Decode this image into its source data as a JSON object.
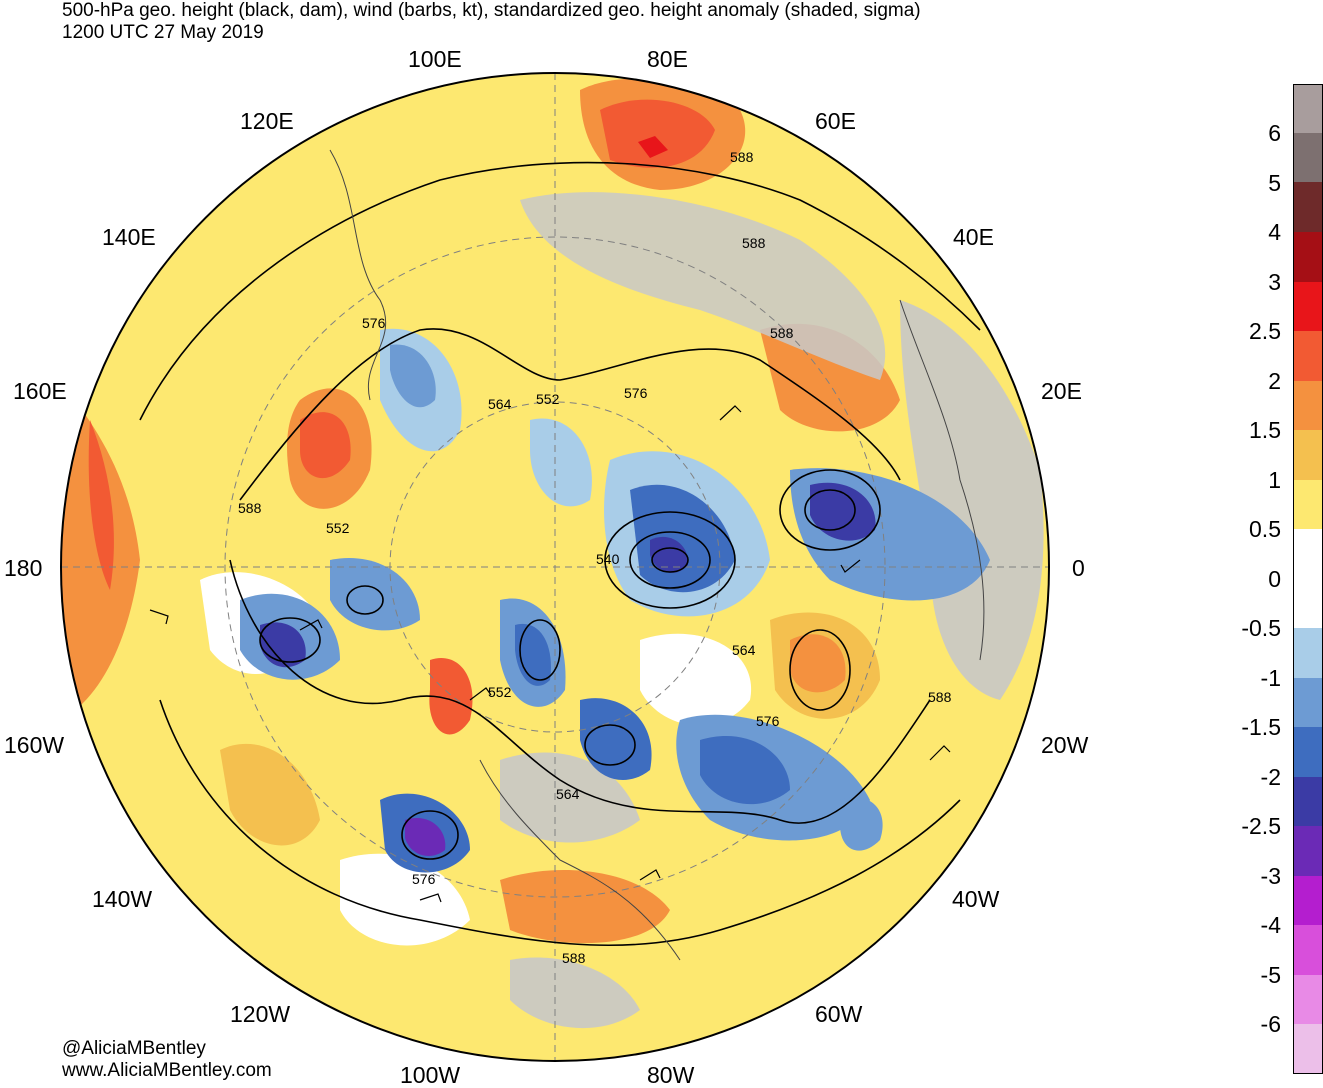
{
  "header": {
    "title": "500-hPa geo. height (black, dam), wind (barbs, kt), standardized geo. height anomaly (shaded, sigma)",
    "valid_time": "1200 UTC 27 May 2019"
  },
  "credit": {
    "handle": "@AliciaMBentley",
    "website": "www.AliciaMBentley.com"
  },
  "map": {
    "projection": "north-polar-stereographic",
    "longitude_labels": [
      "100E",
      "80E",
      "120E",
      "60E",
      "140E",
      "40E",
      "160E",
      "20E",
      "180",
      "0",
      "160W",
      "20W",
      "140W",
      "40W",
      "120W",
      "60W",
      "100W",
      "80W"
    ],
    "height_contour_labels": [
      "576",
      "564",
      "552",
      "576",
      "588",
      "588",
      "588",
      "588",
      "552",
      "540",
      "564",
      "552",
      "576",
      "588",
      "564",
      "576",
      "588"
    ],
    "colors": {
      "land_neutral": "#c8c8c8",
      "ocean_neutral": "#ffffff",
      "contour": "#000000"
    }
  },
  "colorbar": {
    "tick_labels": [
      "6",
      "5",
      "4",
      "3",
      "2.5",
      "2",
      "1.5",
      "1",
      "0.5",
      "0",
      "-0.5",
      "-1",
      "-1.5",
      "-2",
      "-2.5",
      "-3",
      "-4",
      "-5",
      "-6"
    ],
    "colors": [
      "#a89d9d",
      "#7d7070",
      "#6e2a2a",
      "#a50f15",
      "#e8151a",
      "#f25a33",
      "#f4913f",
      "#f4c04f",
      "#fde870",
      "#ffffff",
      "#ffffff",
      "#a9cde8",
      "#6d9bd3",
      "#3e6dbf",
      "#3b3ba5",
      "#6b2ab6",
      "#b41ecf",
      "#d84fdb",
      "#e88ae6",
      "#ecbfe9"
    ]
  }
}
